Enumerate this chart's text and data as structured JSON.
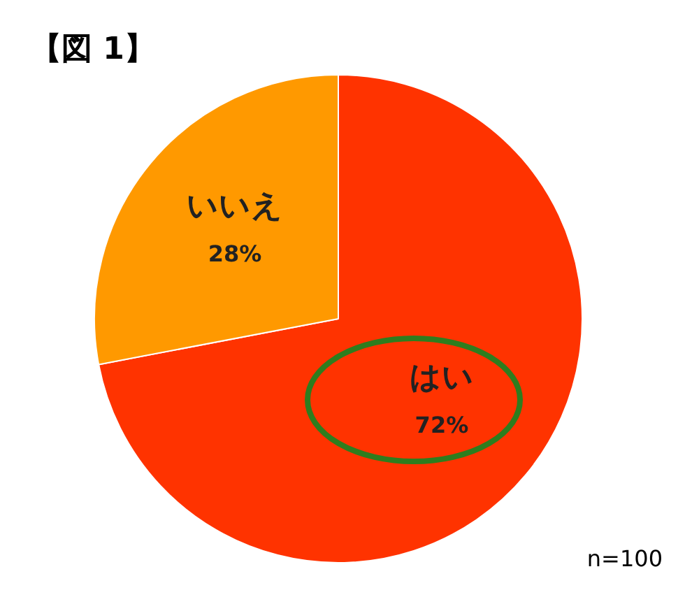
{
  "chart_data": {
    "type": "pie",
    "title": "【図 1】",
    "categories": [
      "はい",
      "いいえ"
    ],
    "values": [
      72,
      28
    ],
    "colors": [
      "#ff3300",
      "#ff9900"
    ],
    "value_labels": [
      "72%",
      "28%"
    ],
    "annotations": [
      "n=100"
    ]
  }
}
